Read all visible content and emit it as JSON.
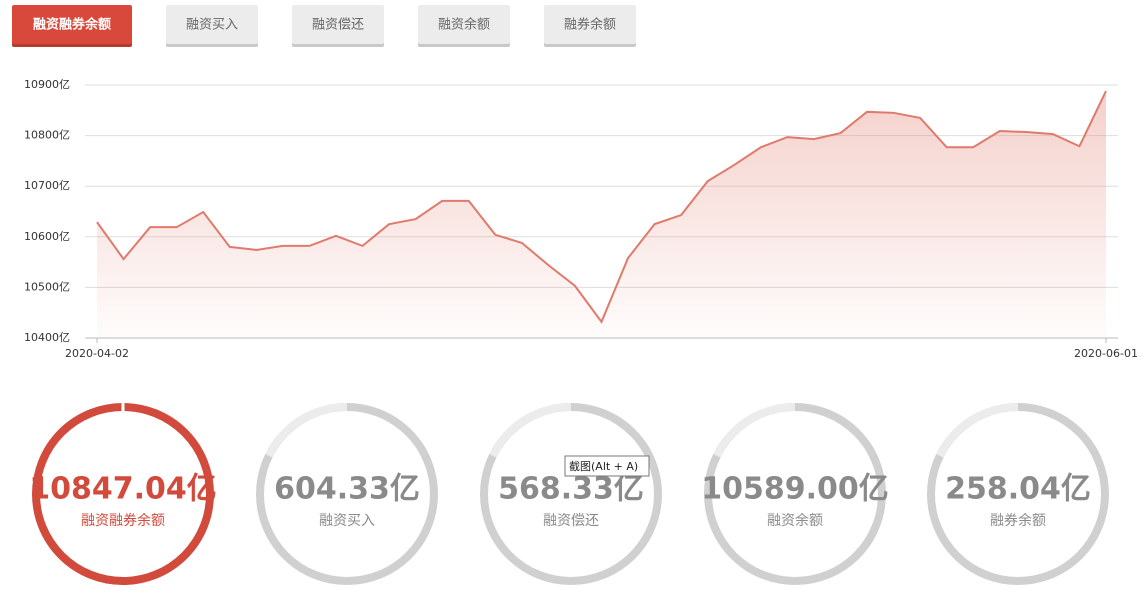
{
  "tabs": [
    "融资融券余额",
    "融资买入",
    "融资偿还",
    "融资余额",
    "融券余额"
  ],
  "chart_data": {
    "type": "line",
    "categories": [
      "2020-04-02",
      null,
      null,
      null,
      null,
      null,
      null,
      null,
      null,
      null,
      null,
      null,
      null,
      null,
      null,
      null,
      null,
      null,
      null,
      null,
      null,
      null,
      null,
      null,
      null,
      null,
      null,
      null,
      null,
      null,
      null,
      null,
      null,
      null,
      null,
      null,
      null,
      null,
      "2020-06-01"
    ],
    "values": [
      10629,
      10556,
      10619,
      10619,
      10649,
      10580,
      10574,
      10582,
      10582,
      10602,
      10582,
      10625,
      10635,
      10671,
      10671,
      10604,
      10588,
      10544,
      10503,
      10432,
      10558,
      10625,
      10643,
      10710,
      10742,
      10777,
      10797,
      10793,
      10805,
      10847,
      10845,
      10835,
      10777,
      10777,
      10809,
      10807,
      10803,
      10779,
      10888
    ],
    "color": "#e07a6b",
    "ylim": [
      10400,
      10900
    ],
    "yticks": [
      {
        "value": 10400,
        "label": "10400亿"
      },
      {
        "value": 10500,
        "label": "10500亿"
      },
      {
        "value": 10600,
        "label": "10600亿"
      },
      {
        "value": 10700,
        "label": "10700亿"
      },
      {
        "value": 10800,
        "label": "10800亿"
      },
      {
        "value": 10900,
        "label": "10900亿"
      }
    ],
    "grid": true
  },
  "stats": [
    {
      "value": "10847.04亿",
      "label": "融资融券余额"
    },
    {
      "value": "604.33亿",
      "label": "融资买入"
    },
    {
      "value": "568.33亿",
      "label": "融资偿还"
    },
    {
      "value": "10589.00亿",
      "label": "融资余额"
    },
    {
      "value": "258.04亿",
      "label": "融券余额"
    }
  ],
  "tooltip": "截图(Alt + A)"
}
